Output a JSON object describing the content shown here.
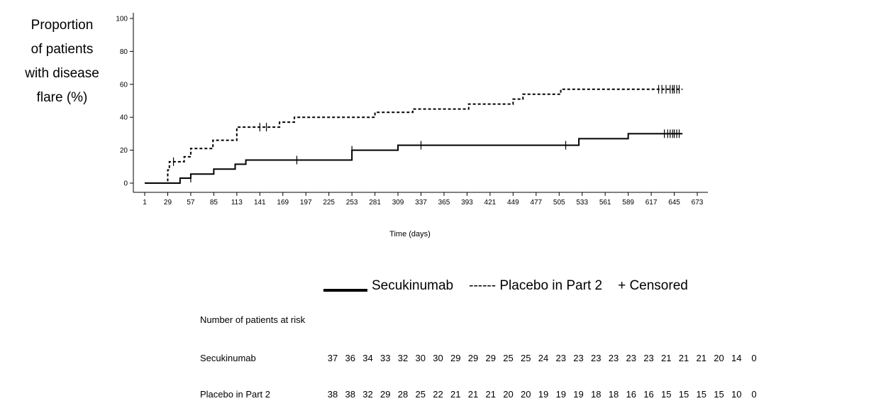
{
  "chart_data": {
    "type": "line",
    "subtype": "kaplan-meier-step",
    "ylabel_lines": [
      "Proportion",
      "of patients",
      "with disease",
      "flare (%)"
    ],
    "xlabel": "Time (days)",
    "xlim": [
      1,
      673
    ],
    "ylim": [
      0,
      100
    ],
    "x_ticks": [
      1,
      29,
      57,
      85,
      113,
      141,
      169,
      197,
      225,
      253,
      281,
      309,
      337,
      365,
      393,
      421,
      449,
      477,
      505,
      533,
      561,
      589,
      617,
      645,
      673
    ],
    "y_ticks": [
      0,
      20,
      40,
      60,
      80,
      100
    ],
    "grid": false,
    "series": [
      {
        "name": "Secukinumab",
        "line_style": "solid",
        "color": "#000000",
        "steps": [
          [
            1,
            0
          ],
          [
            44,
            3
          ],
          [
            53,
            3
          ],
          [
            57,
            5.5
          ],
          [
            85,
            8.5
          ],
          [
            111,
            11.5
          ],
          [
            124,
            14
          ],
          [
            253,
            20
          ],
          [
            309,
            23
          ],
          [
            529,
            27
          ],
          [
            589,
            30
          ],
          [
            655,
            30
          ]
        ],
        "censored": [
          [
            57,
            3
          ],
          [
            186,
            14
          ],
          [
            253,
            20
          ],
          [
            337,
            23
          ],
          [
            513,
            23
          ],
          [
            633,
            30
          ],
          [
            637,
            30
          ],
          [
            640,
            30
          ],
          [
            643,
            30
          ],
          [
            645,
            30
          ],
          [
            648,
            30
          ],
          [
            651,
            30
          ]
        ]
      },
      {
        "name": "Placebo in Part 2",
        "line_style": "dashed",
        "color": "#000000",
        "steps": [
          [
            1,
            0
          ],
          [
            29,
            8
          ],
          [
            31,
            13
          ],
          [
            49,
            16
          ],
          [
            57,
            21
          ],
          [
            84,
            26
          ],
          [
            113,
            34
          ],
          [
            165,
            37
          ],
          [
            183,
            40
          ],
          [
            281,
            43
          ],
          [
            327,
            45
          ],
          [
            395,
            48
          ],
          [
            449,
            51
          ],
          [
            461,
            54
          ],
          [
            507,
            57
          ],
          [
            655,
            57
          ]
        ],
        "censored": [
          [
            36,
            13
          ],
          [
            141,
            34
          ],
          [
            149,
            34
          ],
          [
            626,
            57
          ],
          [
            630,
            57
          ],
          [
            635,
            57
          ],
          [
            640,
            57
          ],
          [
            643,
            57
          ],
          [
            645,
            57
          ],
          [
            648,
            57
          ],
          [
            651,
            57
          ]
        ]
      }
    ],
    "legend": {
      "placement": "below",
      "items": [
        "Secukinumab",
        "------ Placebo in Part 2",
        "+ Censored"
      ]
    },
    "risk_table": {
      "title": "Number of patients at risk",
      "rows": [
        {
          "label": "Secukinumab",
          "values": [
            37,
            36,
            34,
            33,
            32,
            30,
            30,
            29,
            29,
            29,
            25,
            25,
            24,
            23,
            23,
            23,
            23,
            23,
            23,
            21,
            21,
            21,
            20,
            14,
            0
          ]
        },
        {
          "label": "Placebo in Part 2",
          "values": [
            38,
            38,
            32,
            29,
            28,
            25,
            22,
            21,
            21,
            21,
            20,
            20,
            19,
            19,
            19,
            18,
            18,
            16,
            16,
            15,
            15,
            15,
            15,
            10,
            0
          ]
        }
      ]
    }
  }
}
